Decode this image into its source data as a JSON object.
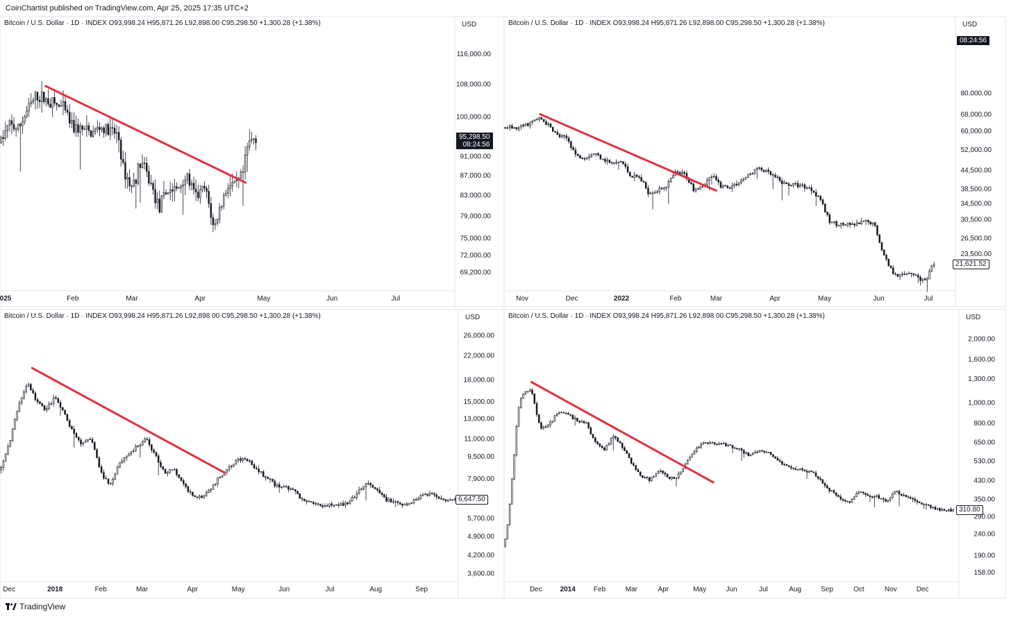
{
  "publisher": "CoinChartist published on TradingView.com, Apr 25, 2025 17:35 UTC+2",
  "footer": {
    "logo_icon": "tradingview-logo-icon",
    "brand": "TradingView"
  },
  "chart_data": [
    {
      "type": "candlestick",
      "header": "Bitcoin / U.S. Dollar · 1D · INDEX  O93,998.24  H95,871.26  L92,898.00  C95,298.50  +1,300.28 (+1.38%)",
      "currency": "USD",
      "yscale": "log",
      "ylim": [
        66500,
        123000
      ],
      "yticks": [
        "116,000.00",
        "108,000.00",
        "100,000.00",
        "91,000.00",
        "87,000.00",
        "83,000.00",
        "79,000.00",
        "75,000.00",
        "72,000.00",
        "69,200.00"
      ],
      "xticks": [
        {
          "label": "025",
          "bold": true,
          "pos": 0.0
        },
        {
          "label": "Feb",
          "bold": false,
          "pos": 0.16
        },
        {
          "label": "Mar",
          "bold": false,
          "pos": 0.29
        },
        {
          "label": "Apr",
          "bold": false,
          "pos": 0.44
        },
        {
          "label": "May",
          "bold": false,
          "pos": 0.58
        },
        {
          "label": "Jun",
          "bold": false,
          "pos": 0.73
        },
        {
          "label": "Jul",
          "bold": false,
          "pos": 0.87
        }
      ],
      "price": [
        [
          0,
          94000
        ],
        [
          0.02,
          98000
        ],
        [
          0.04,
          97000
        ],
        [
          0.06,
          101500
        ],
        [
          0.08,
          105000
        ],
        [
          0.1,
          104200
        ],
        [
          0.12,
          103000
        ],
        [
          0.14,
          101800
        ],
        [
          0.16,
          97500
        ],
        [
          0.18,
          97000
        ],
        [
          0.2,
          96000
        ],
        [
          0.22,
          97500
        ],
        [
          0.24,
          96500
        ],
        [
          0.26,
          95800
        ],
        [
          0.27,
          88500
        ],
        [
          0.29,
          84500
        ],
        [
          0.31,
          90000
        ],
        [
          0.33,
          85500
        ],
        [
          0.35,
          80500
        ],
        [
          0.37,
          84200
        ],
        [
          0.39,
          84000
        ],
        [
          0.41,
          87000
        ],
        [
          0.43,
          82600
        ],
        [
          0.45,
          84300
        ],
        [
          0.46,
          81000
        ],
        [
          0.47,
          76500
        ],
        [
          0.48,
          79500
        ],
        [
          0.5,
          85000
        ],
        [
          0.52,
          84800
        ],
        [
          0.535,
          87500
        ],
        [
          0.545,
          93500
        ],
        [
          0.56,
          95300
        ]
      ],
      "trendline": [
        [
          0.1,
          107500
        ],
        [
          0.54,
          85500
        ]
      ],
      "last": {
        "price": "95,298.50",
        "countdown": "08:24:56",
        "value": 95298.5
      }
    },
    {
      "type": "candlestick",
      "header": "Bitcoin / U.S. Dollar · 1D · INDEX  O93,998.24  H95,871.26  L92,898.00  C95,298.50  +1,300.28 (+1.38%)",
      "currency": "USD",
      "yscale": "log",
      "ylim": [
        18000,
        130000
      ],
      "yticks": [
        "80,000.00",
        "68,000.00",
        "60,000.00",
        "52,000.00",
        "44,500.00",
        "38,500.00",
        "34,500.00",
        "30,500.00",
        "26,500.00",
        "23,500.00"
      ],
      "xticks": [
        {
          "label": "Nov",
          "bold": false,
          "pos": 0.04
        },
        {
          "label": "Dec",
          "bold": false,
          "pos": 0.15
        },
        {
          "label": "2022",
          "bold": true,
          "pos": 0.26
        },
        {
          "label": "Feb",
          "bold": false,
          "pos": 0.38
        },
        {
          "label": "Mar",
          "bold": false,
          "pos": 0.47
        },
        {
          "label": "Apr",
          "bold": false,
          "pos": 0.6
        },
        {
          "label": "May",
          "bold": false,
          "pos": 0.71
        },
        {
          "label": "Jun",
          "bold": false,
          "pos": 0.83
        },
        {
          "label": "Jul",
          "bold": false,
          "pos": 0.94
        }
      ],
      "price": [
        [
          0,
          61500
        ],
        [
          0.03,
          61000
        ],
        [
          0.06,
          64000
        ],
        [
          0.08,
          66000
        ],
        [
          0.1,
          62000
        ],
        [
          0.12,
          57500
        ],
        [
          0.14,
          56500
        ],
        [
          0.16,
          49500
        ],
        [
          0.18,
          49000
        ],
        [
          0.2,
          50500
        ],
        [
          0.22,
          48500
        ],
        [
          0.24,
          46500
        ],
        [
          0.26,
          47500
        ],
        [
          0.28,
          42500
        ],
        [
          0.3,
          42000
        ],
        [
          0.32,
          37500
        ],
        [
          0.34,
          38000
        ],
        [
          0.36,
          39500
        ],
        [
          0.38,
          43500
        ],
        [
          0.4,
          43000
        ],
        [
          0.42,
          38500
        ],
        [
          0.44,
          39500
        ],
        [
          0.46,
          42500
        ],
        [
          0.48,
          39500
        ],
        [
          0.5,
          39000
        ],
        [
          0.52,
          40500
        ],
        [
          0.54,
          42500
        ],
        [
          0.56,
          45000
        ],
        [
          0.58,
          44000
        ],
        [
          0.6,
          42000
        ],
        [
          0.62,
          40000
        ],
        [
          0.64,
          39800
        ],
        [
          0.66,
          39500
        ],
        [
          0.68,
          38500
        ],
        [
          0.7,
          36000
        ],
        [
          0.72,
          30000
        ],
        [
          0.74,
          29500
        ],
        [
          0.76,
          29200
        ],
        [
          0.78,
          29300
        ],
        [
          0.8,
          30000
        ],
        [
          0.82,
          29500
        ],
        [
          0.84,
          23500
        ],
        [
          0.86,
          20500
        ],
        [
          0.88,
          19800
        ],
        [
          0.9,
          20500
        ],
        [
          0.92,
          19500
        ],
        [
          0.935,
          19000
        ],
        [
          0.95,
          21600
        ]
      ],
      "trendline": [
        [
          0.08,
          68000
        ],
        [
          0.47,
          38000
        ]
      ],
      "last": {
        "price": "21,621.52",
        "countdown": "08:24:56",
        "value": 21621.52
      }
    },
    {
      "type": "candlestick",
      "header": "Bitcoin / U.S. Dollar · 1D · INDEX  O93,998.24  H95,871.26  L92,898.00  C95,298.50  +1,300.28 (+1.38%)",
      "currency": "USD",
      "yscale": "log",
      "ylim": [
        3400,
        29000
      ],
      "yticks": [
        "26,000.00",
        "22,000.00",
        "18,000.00",
        "15,000.00",
        "13,000.00",
        "11,000.00",
        "9,500.00",
        "7,900.00",
        "5,700.00",
        "4,900.00",
        "4,200.00",
        "3,600.00"
      ],
      "xticks": [
        {
          "label": "Dec",
          "bold": false,
          "pos": 0.02
        },
        {
          "label": "2018",
          "bold": true,
          "pos": 0.12
        },
        {
          "label": "Feb",
          "bold": false,
          "pos": 0.22
        },
        {
          "label": "Mar",
          "bold": false,
          "pos": 0.31
        },
        {
          "label": "Apr",
          "bold": false,
          "pos": 0.42
        },
        {
          "label": "May",
          "bold": false,
          "pos": 0.52
        },
        {
          "label": "Jun",
          "bold": false,
          "pos": 0.62
        },
        {
          "label": "Jul",
          "bold": false,
          "pos": 0.72
        },
        {
          "label": "Aug",
          "bold": false,
          "pos": 0.82
        },
        {
          "label": "Sep",
          "bold": false,
          "pos": 0.92
        }
      ],
      "price": [
        [
          0,
          8500
        ],
        [
          0.02,
          10500
        ],
        [
          0.04,
          14500
        ],
        [
          0.06,
          17500
        ],
        [
          0.08,
          15000
        ],
        [
          0.1,
          14000
        ],
        [
          0.12,
          15500
        ],
        [
          0.14,
          13500
        ],
        [
          0.16,
          11500
        ],
        [
          0.18,
          10500
        ],
        [
          0.2,
          11000
        ],
        [
          0.22,
          8300
        ],
        [
          0.24,
          7500
        ],
        [
          0.26,
          9000
        ],
        [
          0.28,
          9700
        ],
        [
          0.3,
          10300
        ],
        [
          0.32,
          11000
        ],
        [
          0.34,
          9500
        ],
        [
          0.36,
          8300
        ],
        [
          0.38,
          8500
        ],
        [
          0.4,
          7500
        ],
        [
          0.42,
          6900
        ],
        [
          0.44,
          6800
        ],
        [
          0.46,
          7300
        ],
        [
          0.48,
          8000
        ],
        [
          0.5,
          8800
        ],
        [
          0.52,
          9300
        ],
        [
          0.54,
          9200
        ],
        [
          0.56,
          8500
        ],
        [
          0.58,
          8000
        ],
        [
          0.6,
          7500
        ],
        [
          0.62,
          7400
        ],
        [
          0.64,
          7200
        ],
        [
          0.66,
          6600
        ],
        [
          0.68,
          6500
        ],
        [
          0.7,
          6300
        ],
        [
          0.72,
          6400
        ],
        [
          0.74,
          6400
        ],
        [
          0.76,
          6400
        ],
        [
          0.78,
          7000
        ],
        [
          0.8,
          7600
        ],
        [
          0.82,
          7200
        ],
        [
          0.84,
          6700
        ],
        [
          0.86,
          6500
        ],
        [
          0.88,
          6300
        ],
        [
          0.9,
          6500
        ],
        [
          0.92,
          6900
        ],
        [
          0.94,
          7000
        ],
        [
          0.96,
          6700
        ],
        [
          0.98,
          6650
        ]
      ],
      "trendline": [
        [
          0.07,
          19800
        ],
        [
          0.49,
          8300
        ]
      ],
      "last": {
        "price": "6,647.50",
        "value": 6647.5
      }
    },
    {
      "type": "candlestick",
      "header": "Bitcoin / U.S. Dollar · 1D · INDEX  O93,998.24  H95,871.26  L92,898.00  C95,298.50  +1,300.28 (+1.38%)",
      "currency": "USD",
      "yscale": "log",
      "ylim": [
        145,
        2400
      ],
      "yticks": [
        "2,000.00",
        "1,600.00",
        "1,300.00",
        "1,000.00",
        "800.00",
        "650.00",
        "530.00",
        "430.00",
        "350.00",
        "290.00",
        "240.00",
        "190.00",
        "158.00"
      ],
      "xticks": [
        {
          "label": "Dec",
          "bold": false,
          "pos": 0.07
        },
        {
          "label": "2014",
          "bold": true,
          "pos": 0.14
        },
        {
          "label": "Feb",
          "bold": false,
          "pos": 0.21
        },
        {
          "label": "Mar",
          "bold": false,
          "pos": 0.28
        },
        {
          "label": "Apr",
          "bold": false,
          "pos": 0.35
        },
        {
          "label": "May",
          "bold": false,
          "pos": 0.43
        },
        {
          "label": "Jun",
          "bold": false,
          "pos": 0.5
        },
        {
          "label": "Jul",
          "bold": false,
          "pos": 0.57
        },
        {
          "label": "Aug",
          "bold": false,
          "pos": 0.64
        },
        {
          "label": "Sep",
          "bold": false,
          "pos": 0.71
        },
        {
          "label": "Oct",
          "bold": false,
          "pos": 0.78
        },
        {
          "label": "Nov",
          "bold": false,
          "pos": 0.85
        },
        {
          "label": "Dec",
          "bold": false,
          "pos": 0.92
        }
      ],
      "price": [
        [
          0,
          210
        ],
        [
          0.01,
          290
        ],
        [
          0.02,
          500
        ],
        [
          0.03,
          900
        ],
        [
          0.04,
          1100
        ],
        [
          0.06,
          1150
        ],
        [
          0.08,
          750
        ],
        [
          0.1,
          800
        ],
        [
          0.12,
          900
        ],
        [
          0.14,
          880
        ],
        [
          0.16,
          820
        ],
        [
          0.18,
          800
        ],
        [
          0.2,
          650
        ],
        [
          0.22,
          600
        ],
        [
          0.24,
          700
        ],
        [
          0.26,
          620
        ],
        [
          0.28,
          520
        ],
        [
          0.3,
          450
        ],
        [
          0.32,
          430
        ],
        [
          0.34,
          480
        ],
        [
          0.36,
          440
        ],
        [
          0.38,
          440
        ],
        [
          0.4,
          520
        ],
        [
          0.42,
          600
        ],
        [
          0.44,
          650
        ],
        [
          0.46,
          640
        ],
        [
          0.48,
          640
        ],
        [
          0.5,
          620
        ],
        [
          0.52,
          600
        ],
        [
          0.54,
          560
        ],
        [
          0.56,
          590
        ],
        [
          0.58,
          580
        ],
        [
          0.6,
          540
        ],
        [
          0.62,
          500
        ],
        [
          0.64,
          490
        ],
        [
          0.66,
          480
        ],
        [
          0.68,
          470
        ],
        [
          0.7,
          420
        ],
        [
          0.72,
          380
        ],
        [
          0.74,
          350
        ],
        [
          0.76,
          340
        ],
        [
          0.78,
          380
        ],
        [
          0.8,
          360
        ],
        [
          0.82,
          360
        ],
        [
          0.84,
          340
        ],
        [
          0.86,
          380
        ],
        [
          0.88,
          360
        ],
        [
          0.9,
          350
        ],
        [
          0.92,
          330
        ],
        [
          0.94,
          320
        ],
        [
          0.96,
          310
        ],
        [
          0.98,
          311
        ]
      ],
      "trendline": [
        [
          0.06,
          1250
        ],
        [
          0.46,
          420
        ]
      ],
      "last": {
        "price": "310.80",
        "value": 310.8
      }
    }
  ]
}
